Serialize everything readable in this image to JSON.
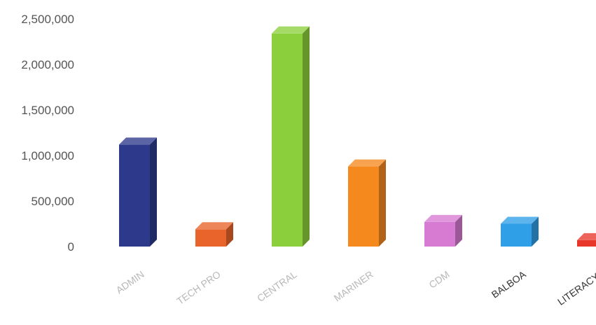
{
  "chart_data": {
    "type": "bar",
    "title": "",
    "xlabel": "",
    "ylabel": "",
    "ylim": [
      0,
      2500000
    ],
    "yticks": [
      "0",
      "500,000",
      "1,000,000",
      "1,500,000",
      "2,000,000",
      "2,500,000"
    ],
    "ytick_values": [
      0,
      500000,
      1000000,
      1500000,
      2000000,
      2500000
    ],
    "grid": false,
    "legend": "none",
    "style": "3d-columns",
    "categories": [
      "ADMIN",
      "TECH PRO",
      "CENTRAL",
      "MARINER",
      "CDM",
      "BALBOA",
      "LITERACY*"
    ],
    "values": [
      1120000,
      190000,
      2340000,
      880000,
      270000,
      250000,
      70000
    ],
    "colors": [
      "#2d3a8c",
      "#e8642a",
      "#8ccf3c",
      "#f5891e",
      "#d77ad2",
      "#2f9fe8",
      "#e8362a"
    ]
  }
}
